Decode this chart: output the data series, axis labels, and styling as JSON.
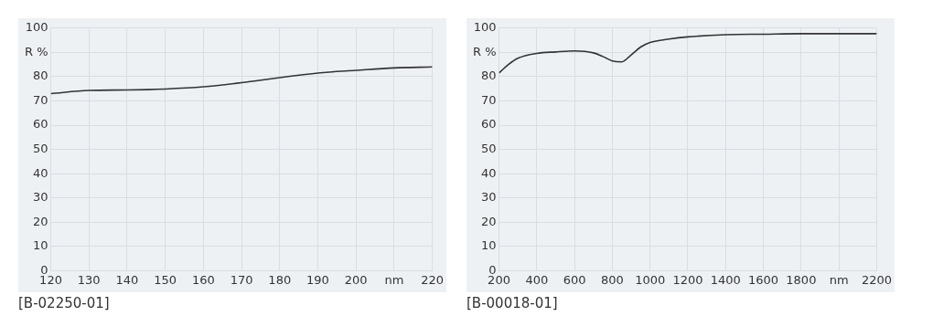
{
  "chart_data": [
    {
      "type": "line",
      "x": [
        120,
        130,
        140,
        150,
        160,
        170,
        180,
        190,
        200,
        210,
        220
      ],
      "series": [
        {
          "color": "#333333",
          "values": [
            73.0,
            74.3,
            74.5,
            74.9,
            75.8,
            77.5,
            79.6,
            81.5,
            82.6,
            83.6,
            84.0
          ]
        }
      ],
      "xlim": [
        120,
        220
      ],
      "xticks": [
        120,
        130,
        140,
        150,
        160,
        170,
        180,
        190,
        200,
        {
          "value": 210,
          "label": "nm"
        },
        220
      ],
      "ylim": [
        0,
        100
      ],
      "yticks": [
        0,
        10,
        20,
        30,
        40,
        50,
        60,
        70,
        80,
        {
          "value": 90,
          "label": "R %"
        },
        100
      ],
      "grid": true,
      "legend": false,
      "marker": "none",
      "line_style": "solid",
      "annotations": [
        "[B-02250-01]"
      ]
    },
    {
      "type": "line",
      "x": [
        200,
        250,
        300,
        400,
        500,
        600,
        700,
        750,
        800,
        850,
        900,
        950,
        1000,
        1100,
        1200,
        1400,
        1600,
        1800,
        2000,
        2200
      ],
      "series": [
        {
          "color": "#333333",
          "values": [
            81.5,
            85.0,
            87.6,
            89.6,
            90.2,
            90.6,
            89.8,
            88.3,
            86.5,
            86.1,
            89.0,
            92.2,
            94.1,
            95.5,
            96.4,
            97.3,
            97.5,
            97.7,
            97.7,
            97.7
          ]
        }
      ],
      "xlim": [
        200,
        2200
      ],
      "xticks": [
        200,
        400,
        600,
        800,
        1000,
        1200,
        1400,
        1600,
        1800,
        {
          "value": 2000,
          "label": "nm"
        },
        2200
      ],
      "ylim": [
        0,
        100
      ],
      "yticks": [
        0,
        10,
        20,
        30,
        40,
        50,
        60,
        70,
        80,
        {
          "value": 90,
          "label": "R %"
        },
        100
      ],
      "grid": true,
      "legend": false,
      "marker": "none",
      "line_style": "solid",
      "annotations": [
        "[B-00018-01]"
      ]
    }
  ]
}
